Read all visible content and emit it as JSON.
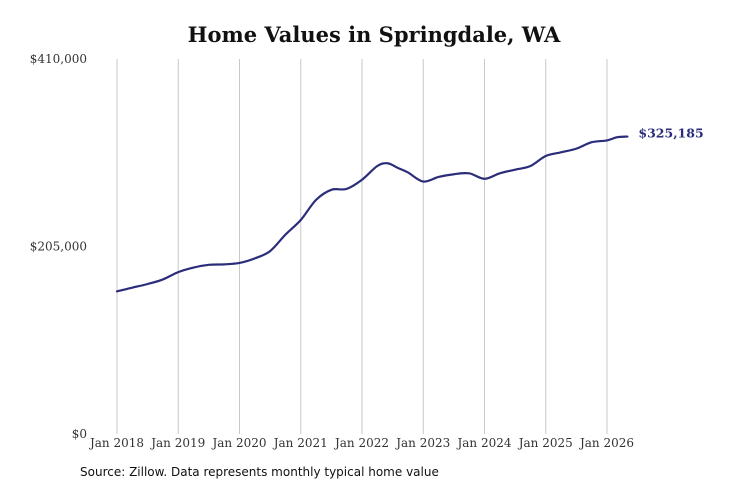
{
  "chart_data": {
    "type": "line",
    "title": "Home Values in Springdale, WA",
    "xlabel": "",
    "ylabel": "",
    "ylim": [
      0,
      410000
    ],
    "y_ticks": [
      0,
      205000,
      410000
    ],
    "y_tick_labels": [
      "$0",
      "$205,000",
      "$410,000"
    ],
    "x_ticks": [
      "2018-01",
      "2019-01",
      "2020-01",
      "2021-01",
      "2022-01",
      "2023-01",
      "2024-01",
      "2025-01",
      "2026-01"
    ],
    "x_tick_labels": [
      "Jan 2018",
      "Jan 2019",
      "Jan 2020",
      "Jan 2021",
      "Jan 2022",
      "Jan 2023",
      "Jan 2024",
      "Jan 2025",
      "Jan 2026"
    ],
    "grid": "vertical",
    "series": [
      {
        "color": "#2b2d7a",
        "end_label": "$325,185",
        "points": [
          {
            "x": "2018-01",
            "y": 156000
          },
          {
            "x": "2018-04",
            "y": 160000
          },
          {
            "x": "2018-07",
            "y": 164000
          },
          {
            "x": "2018-10",
            "y": 169000
          },
          {
            "x": "2019-01",
            "y": 177000
          },
          {
            "x": "2019-04",
            "y": 182000
          },
          {
            "x": "2019-07",
            "y": 185000
          },
          {
            "x": "2019-10",
            "y": 185500
          },
          {
            "x": "2020-01",
            "y": 187000
          },
          {
            "x": "2020-04",
            "y": 192000
          },
          {
            "x": "2020-07",
            "y": 200000
          },
          {
            "x": "2020-10",
            "y": 218000
          },
          {
            "x": "2021-01",
            "y": 234000
          },
          {
            "x": "2021-04",
            "y": 256000
          },
          {
            "x": "2021-07",
            "y": 267000
          },
          {
            "x": "2021-10",
            "y": 268000
          },
          {
            "x": "2022-01",
            "y": 278000
          },
          {
            "x": "2022-04",
            "y": 293000
          },
          {
            "x": "2022-06",
            "y": 296000
          },
          {
            "x": "2022-08",
            "y": 291000
          },
          {
            "x": "2022-10",
            "y": 286000
          },
          {
            "x": "2023-01",
            "y": 276000
          },
          {
            "x": "2023-04",
            "y": 281000
          },
          {
            "x": "2023-07",
            "y": 284000
          },
          {
            "x": "2023-10",
            "y": 285000
          },
          {
            "x": "2024-01",
            "y": 279000
          },
          {
            "x": "2024-04",
            "y": 285000
          },
          {
            "x": "2024-07",
            "y": 289000
          },
          {
            "x": "2024-10",
            "y": 293000
          },
          {
            "x": "2025-01",
            "y": 304000
          },
          {
            "x": "2025-04",
            "y": 308000
          },
          {
            "x": "2025-07",
            "y": 312000
          },
          {
            "x": "2025-10",
            "y": 319000
          },
          {
            "x": "2026-01",
            "y": 321000
          },
          {
            "x": "2026-03",
            "y": 324500
          },
          {
            "x": "2026-05",
            "y": 325185
          }
        ]
      }
    ]
  },
  "source_text": "Source: Zillow. Data represents monthly typical home value"
}
